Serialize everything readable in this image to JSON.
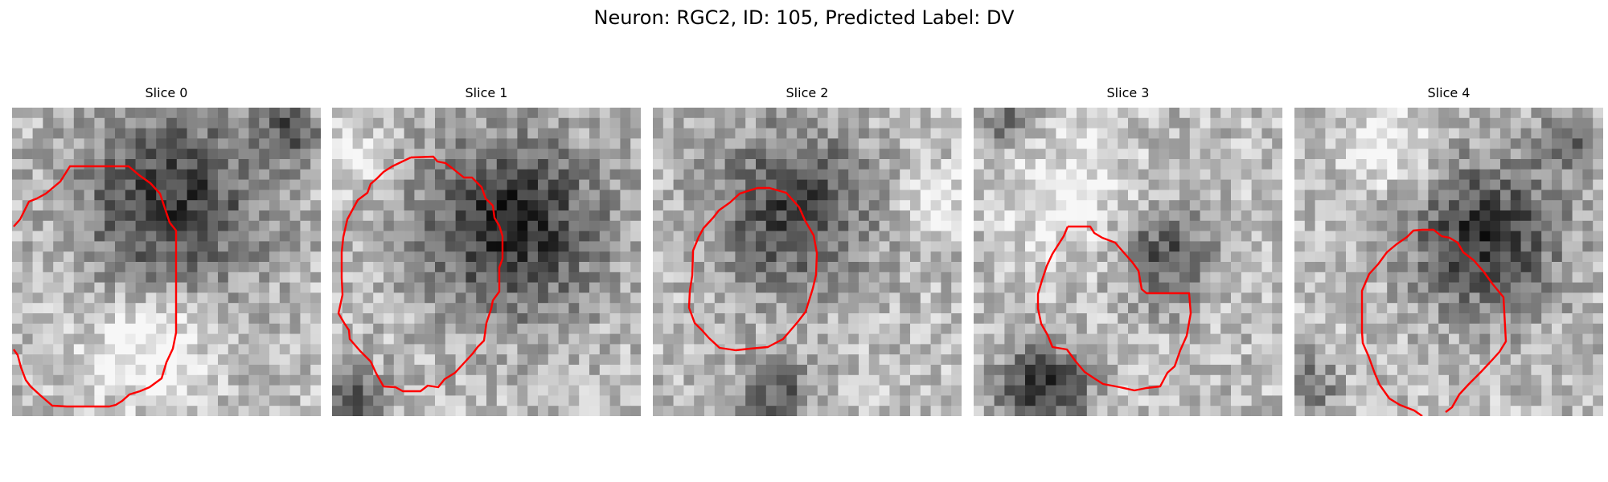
{
  "figure": {
    "title": "Neuron: RGC2, ID: 105, Predicted Label: DV"
  },
  "panels": [
    {
      "title": "Slice 0",
      "seed": 11,
      "blobs": [
        [
          0.52,
          0.3,
          0.3,
          0.52
        ],
        [
          0.9,
          0.08,
          0.09,
          0.4
        ],
        [
          0.45,
          0.78,
          0.18,
          -0.3
        ]
      ]
    },
    {
      "title": "Slice 1",
      "seed": 23,
      "blobs": [
        [
          0.58,
          0.38,
          0.29,
          0.58
        ],
        [
          0.08,
          0.95,
          0.1,
          0.38
        ],
        [
          0.05,
          0.15,
          0.09,
          -0.25
        ]
      ]
    },
    {
      "title": "Slice 2",
      "seed": 37,
      "blobs": [
        [
          0.45,
          0.33,
          0.26,
          0.48
        ],
        [
          0.4,
          0.93,
          0.12,
          0.38
        ],
        [
          0.9,
          0.3,
          0.1,
          -0.25
        ]
      ]
    },
    {
      "title": "Slice 3",
      "seed": 41,
      "blobs": [
        [
          0.62,
          0.48,
          0.15,
          0.42
        ],
        [
          0.22,
          0.91,
          0.14,
          0.58
        ],
        [
          0.1,
          0.04,
          0.08,
          0.35
        ],
        [
          0.3,
          0.3,
          0.2,
          -0.22
        ]
      ]
    },
    {
      "title": "Slice 4",
      "seed": 53,
      "blobs": [
        [
          0.62,
          0.42,
          0.24,
          0.55
        ],
        [
          0.88,
          0.12,
          0.09,
          0.35
        ],
        [
          0.05,
          0.9,
          0.09,
          0.3
        ],
        [
          0.3,
          0.12,
          0.14,
          -0.25
        ]
      ]
    }
  ],
  "colors": {
    "contour": "#ff0000",
    "background": "#ffffff"
  }
}
